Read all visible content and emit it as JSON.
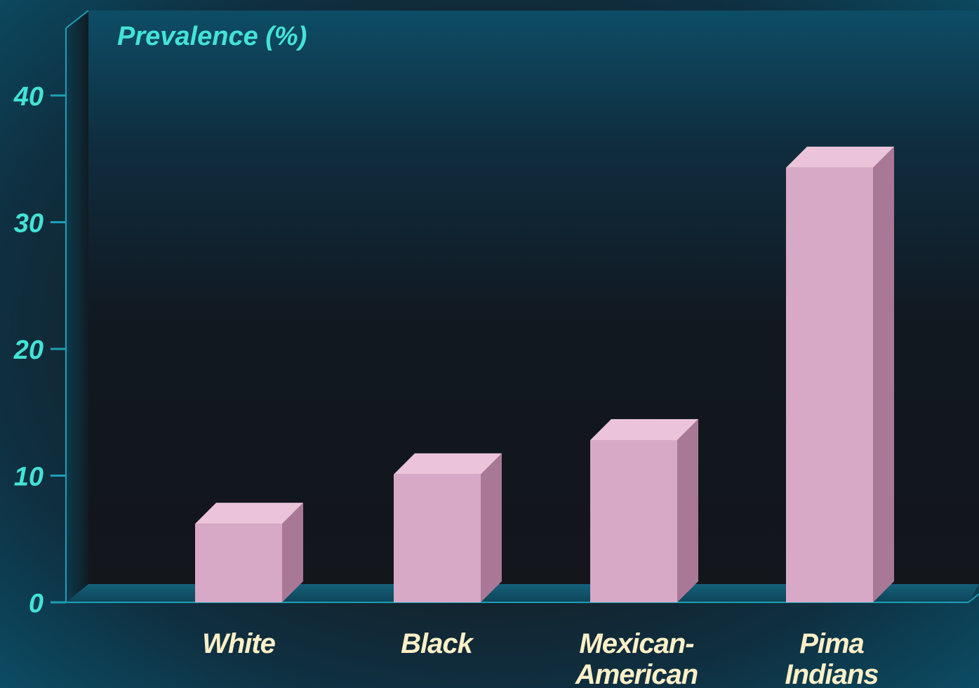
{
  "chart_data": {
    "type": "bar",
    "ylabel": "Prevalence (%)",
    "categories": [
      "White",
      "Black",
      "Mexican-American",
      "Pima Indians"
    ],
    "category_lines": [
      [
        "White"
      ],
      [
        "Black"
      ],
      [
        "Mexican-",
        "American"
      ],
      [
        "Pima",
        "Indians"
      ]
    ],
    "values": [
      6.2,
      10.1,
      12.8,
      34.3
    ],
    "ylim": [
      0,
      45
    ],
    "yticks": [
      0,
      10,
      20,
      30,
      40
    ],
    "ytick_labels": [
      "0",
      "10",
      "20",
      "30",
      "40"
    ],
    "grid": false,
    "legend": "none",
    "style": "3d-columns"
  },
  "colors": {
    "bar_front": "#d8a9c6",
    "bar_top": "#ecc4d9",
    "bar_side": "#a87896",
    "axis_text": "#43e3d6",
    "category_text": "#fff0c8",
    "axis_line": "#1d9fb7"
  }
}
